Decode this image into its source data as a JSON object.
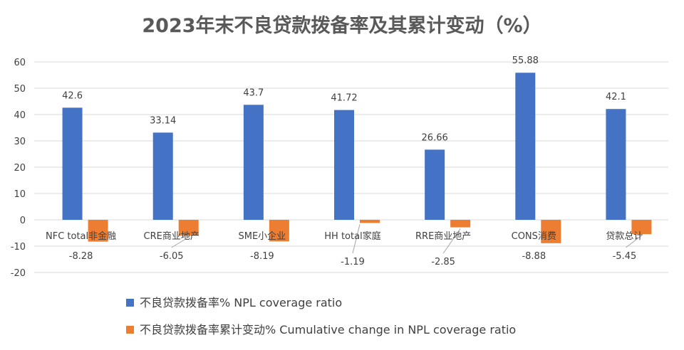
{
  "chart_data": {
    "type": "bar",
    "title": "2023年末不良贷款拨备率及其累计变动（%）",
    "categories": [
      "NFC total非金融",
      "CRE商业地产",
      "SME小企业",
      "HH total家庭",
      "RRE商业地产",
      "CONS消费",
      "贷款总计"
    ],
    "series": [
      {
        "name": "不良贷款拨备率% NPL coverage ratio",
        "color": "#4472C4",
        "values": [
          42.6,
          33.14,
          43.7,
          41.72,
          26.66,
          55.88,
          42.1
        ]
      },
      {
        "name": "不良贷款拨备率累计变动% Cumulative change in NPL coverage ratio",
        "color": "#ED7D31",
        "values": [
          -8.28,
          -6.05,
          -8.19,
          -1.19,
          -2.85,
          -8.88,
          -5.45
        ]
      }
    ],
    "ylim": [
      -20,
      60
    ],
    "yticks": [
      60,
      50,
      40,
      30,
      20,
      10,
      0,
      -10,
      -20
    ],
    "grid": true,
    "legend_position": "bottom-left",
    "xlabel": "",
    "ylabel": ""
  }
}
